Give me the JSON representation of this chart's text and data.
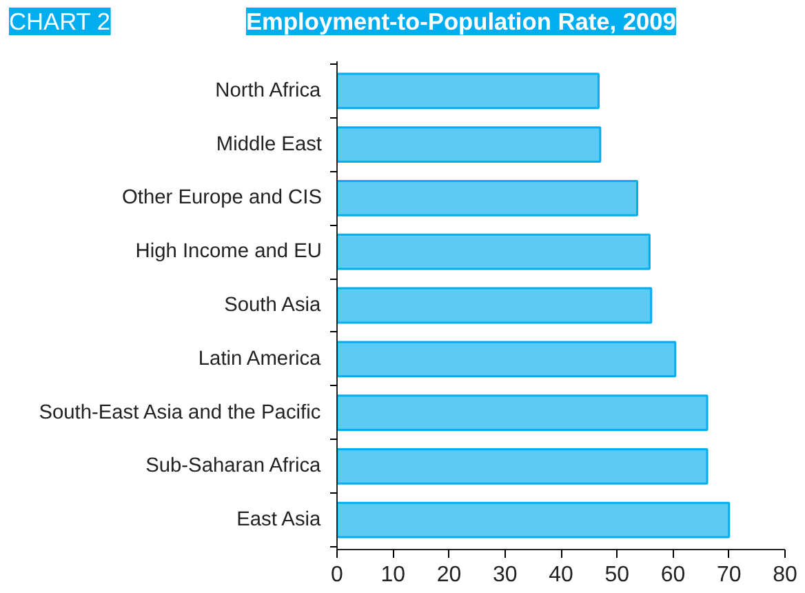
{
  "chart_data": {
    "type": "bar",
    "orientation": "horizontal",
    "title": "Employment-to-Population Rate, 2009",
    "annotations": [
      "CHART 2"
    ],
    "categories": [
      "North Africa",
      "Middle East",
      "Other Europe and CIS",
      "High Income and EU",
      "South Asia",
      "Latin America",
      "South-East Asia and the Pacific",
      "Sub-Saharan Africa",
      "East Asia"
    ],
    "values": [
      46.7,
      47.0,
      53.6,
      55.8,
      56.1,
      60.4,
      66.1,
      66.1,
      70.0
    ],
    "color": "#5bcbf5",
    "xlim": [
      0,
      80
    ],
    "xticks": [
      0,
      10,
      20,
      30,
      40,
      50,
      60,
      70,
      80
    ],
    "grid": false
  }
}
